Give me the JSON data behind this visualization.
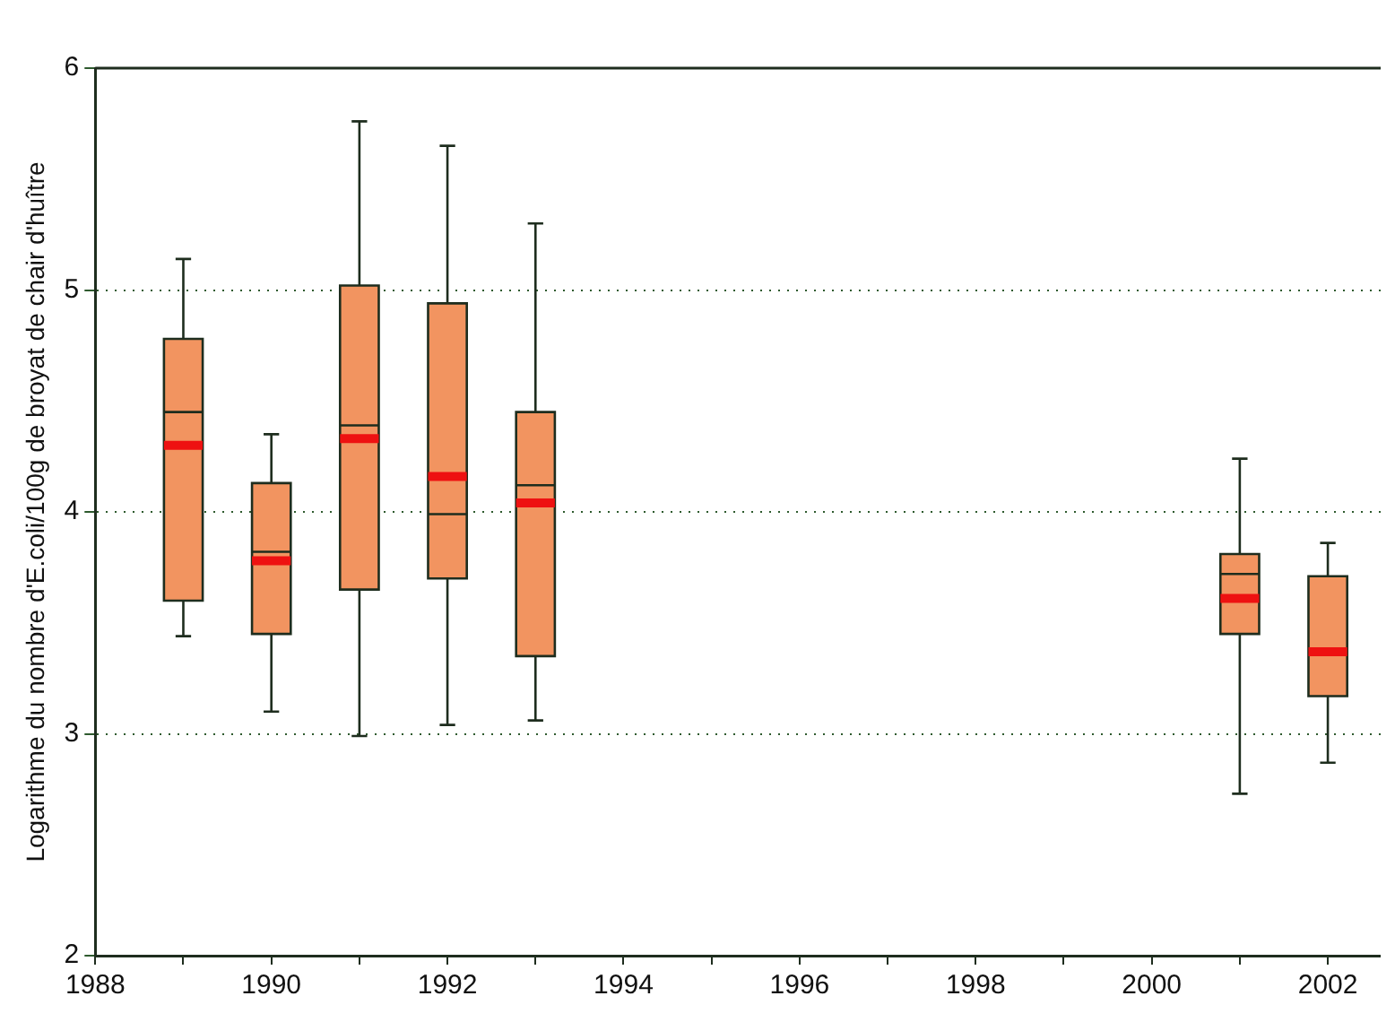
{
  "chart_data": {
    "type": "box",
    "ylabel": "Logarithme du nombre d'E.coli/100g de broyat de chair d'huître",
    "x": [
      1989,
      1990,
      1991,
      1992,
      1993,
      2001,
      2002
    ],
    "series": [
      {
        "color": "#f29460",
        "boxes": [
          {
            "low": 3.44,
            "q1": 3.6,
            "median": 4.45,
            "q3": 4.78,
            "high": 5.14,
            "mean": 4.3
          },
          {
            "low": 3.1,
            "q1": 3.45,
            "median": 3.82,
            "q3": 4.13,
            "high": 4.35,
            "mean": 3.78
          },
          {
            "low": 2.99,
            "q1": 3.65,
            "median": 4.39,
            "q3": 5.02,
            "high": 5.76,
            "mean": 4.33
          },
          {
            "low": 3.04,
            "q1": 3.7,
            "median": 3.99,
            "q3": 4.94,
            "high": 5.65,
            "mean": 4.16
          },
          {
            "low": 3.06,
            "q1": 3.35,
            "median": 4.12,
            "q3": 4.45,
            "high": 5.3,
            "mean": 4.04
          },
          {
            "low": 2.73,
            "q1": 3.45,
            "median": 3.72,
            "q3": 3.81,
            "high": 4.24,
            "mean": 3.61
          },
          {
            "low": 2.87,
            "q1": 3.17,
            "median": 3.37,
            "q3": 3.71,
            "high": 3.86,
            "mean": 3.37
          }
        ]
      }
    ],
    "xlim": [
      1988,
      2002.6
    ],
    "xticks": [
      1988,
      {
        "value": 1989,
        "label": null
      },
      1990,
      {
        "value": 1991,
        "label": null
      },
      1992,
      {
        "value": 1993,
        "label": null
      },
      1994,
      {
        "value": 1995,
        "label": null
      },
      1996,
      {
        "value": 1997,
        "label": null
      },
      1998,
      {
        "value": 1999,
        "label": null
      },
      2000,
      {
        "value": 2001,
        "label": null
      },
      2002
    ],
    "ylim": [
      2,
      6
    ],
    "yticks": [
      2,
      3,
      4,
      5,
      6
    ],
    "grid": "y",
    "legend": false
  }
}
